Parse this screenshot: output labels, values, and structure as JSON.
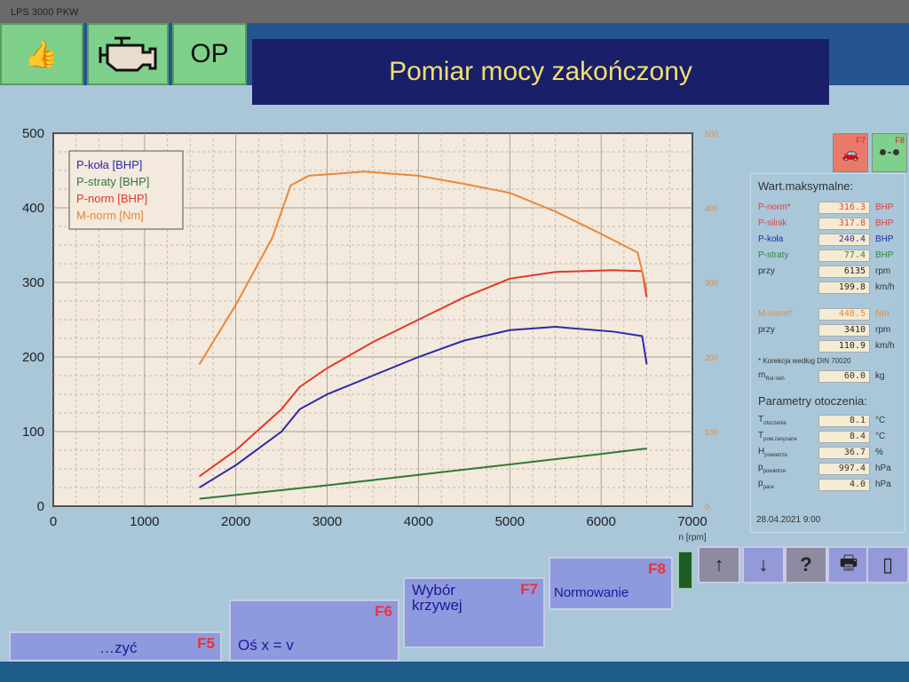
{
  "window_title": "LPS 3000 PKW",
  "top_buttons": [
    {
      "icon": "thumbs-up-icon"
    },
    {
      "icon": "engine-icon"
    },
    {
      "label": "OP"
    }
  ],
  "banner_title": "Pomiar mocy zakończony",
  "function_keys": [
    {
      "key": "F7",
      "icon": "car-icon"
    },
    {
      "key": "F8",
      "icon": "axle-icon"
    }
  ],
  "side_panel": {
    "max_heading": "Wart.maksymalne:",
    "max_rows": [
      {
        "label": "P-norm*",
        "value": "316.3",
        "unit": "BHP",
        "color": "#e04040"
      },
      {
        "label": "P-silnik",
        "value": "317.8",
        "unit": "BHP",
        "color": "#e04040"
      },
      {
        "label": "P-koła",
        "value": "240.4",
        "unit": "BHP",
        "color": "#2a2aa8"
      },
      {
        "label": "P-straty",
        "value": "77.4",
        "unit": "BHP",
        "color": "#2f8a3a"
      },
      {
        "label": "przy",
        "value": "6135",
        "unit": "rpm",
        "color": "#333333"
      },
      {
        "label": "",
        "value": "199.8",
        "unit": "km/h",
        "color": "#333333"
      },
      {
        "label": "M-norm*",
        "value": "448.5",
        "unit": "Nm",
        "color": "#e88a3a"
      },
      {
        "label": "przy",
        "value": "3410",
        "unit": "rpm",
        "color": "#333333"
      },
      {
        "label": "",
        "value": "110.9",
        "unit": "km/h",
        "color": "#333333"
      }
    ],
    "correction_note": "* Korekcja według DIN 70020",
    "mass": {
      "label": "m",
      "sub": "Rol-Veh",
      "value": "60.0",
      "unit": "kg"
    },
    "env_heading": "Parametry otoczenia:",
    "env_rows": [
      {
        "label": "T",
        "sub": "otoczenie",
        "value": "8.1",
        "unit": "°C"
      },
      {
        "label": "T",
        "sub": "pow.zasysane",
        "value": "8.4",
        "unit": "°C"
      },
      {
        "label": "H",
        "sub": "powietrze",
        "value": "36.7",
        "unit": "%"
      },
      {
        "label": "p",
        "sub": "powietrze",
        "value": "997.4",
        "unit": "hPa"
      },
      {
        "label": "p",
        "sub": "para",
        "value": "4.0",
        "unit": "hPa"
      }
    ],
    "datetime": "28.04.2021 9:00"
  },
  "bottom_buttons": [
    {
      "label": "…zyć",
      "key": "F5"
    },
    {
      "label": "Oś x = v",
      "key": "F6"
    },
    {
      "label": "Wybór krzywej",
      "key": "F7"
    },
    {
      "label": "Normowanie",
      "key": "F8"
    }
  ],
  "icon_buttons": [
    "arrow-up-icon",
    "arrow-down-icon",
    "help-icon",
    "printer-icon",
    "exit-icon"
  ],
  "help_label": "?",
  "chart_data": {
    "type": "line",
    "xlabel": "n [rpm]",
    "xlim": [
      0,
      7000
    ],
    "xticks": [
      0,
      1000,
      2000,
      3000,
      4000,
      5000,
      6000,
      7000
    ],
    "ylim_left": [
      0,
      500
    ],
    "yticks_left": [
      0,
      100,
      200,
      300,
      400,
      500
    ],
    "ylim_right": [
      0,
      500
    ],
    "yticks_right": [
      0,
      100,
      200,
      300,
      400,
      500
    ],
    "grid": true,
    "legend_position": "top-left",
    "background": "#f3e9dc",
    "series": [
      {
        "name": "P-koła [BHP]",
        "color": "#2a2aa8",
        "axis": "left",
        "x": [
          1600,
          2000,
          2500,
          2700,
          3000,
          3500,
          4000,
          4500,
          5000,
          5500,
          6135,
          6450,
          6500
        ],
        "y": [
          25,
          55,
          100,
          130,
          150,
          175,
          200,
          222,
          236,
          240.4,
          234,
          228,
          190
        ]
      },
      {
        "name": "P-straty [BHP]",
        "color": "#2f7a35",
        "axis": "left",
        "x": [
          1600,
          2000,
          3000,
          4000,
          5000,
          6000,
          6500
        ],
        "y": [
          10,
          15,
          28,
          42,
          56,
          70,
          77.4
        ]
      },
      {
        "name": "P-norm [BHP]",
        "color": "#e03a2a",
        "axis": "left",
        "x": [
          1600,
          2000,
          2500,
          2700,
          3000,
          3500,
          4000,
          4500,
          5000,
          5500,
          6135,
          6450,
          6500
        ],
        "y": [
          40,
          75,
          130,
          160,
          185,
          220,
          250,
          280,
          305,
          314,
          316.3,
          315,
          280
        ]
      },
      {
        "name": "M-norm [Nm]",
        "color": "#e8883a",
        "axis": "right",
        "x": [
          1600,
          2000,
          2400,
          2600,
          2800,
          3410,
          4000,
          4500,
          5000,
          5500,
          6000,
          6400,
          6500
        ],
        "y": [
          190,
          270,
          360,
          430,
          443,
          448.5,
          443,
          432,
          420,
          395,
          365,
          340,
          290
        ]
      }
    ]
  }
}
